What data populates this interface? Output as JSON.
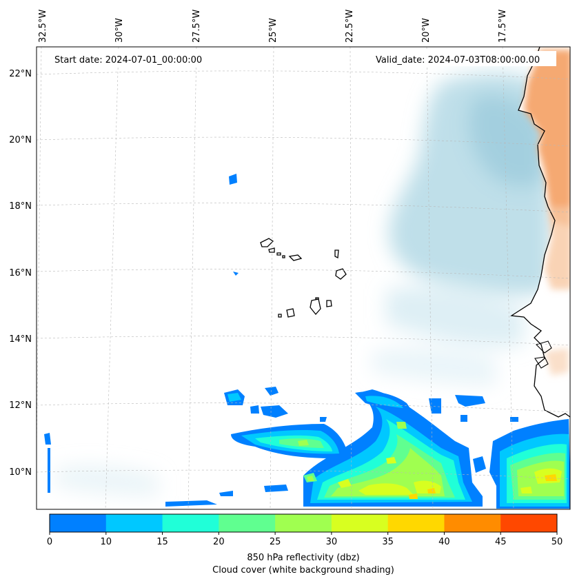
{
  "map": {
    "start_date": "Start date: 2024-07-01_00:00:00",
    "valid_date": "Valid_date: 2024-07-03T08:00:00.00",
    "lon_labels": [
      "32.5°W",
      "30°W",
      "27.5°W",
      "25°W",
      "22.5°W",
      "20°W",
      "17.5°W"
    ],
    "lat_labels": [
      "22°N",
      "20°N",
      "18°N",
      "16°N",
      "14°N",
      "12°N",
      "10°N"
    ],
    "region": "Cape Verde / West African coast",
    "fields": {
      "cloud_cover_color": "#a9d4e2",
      "land_color": "#f4a46a",
      "coastline_color": "#000000"
    }
  },
  "colorbar": {
    "ticks": [
      "0",
      "10",
      "15",
      "20",
      "25",
      "30",
      "35",
      "40",
      "45",
      "50"
    ],
    "colors": [
      "#0080ff",
      "#00c8ff",
      "#20ffd8",
      "#60ff90",
      "#a0ff50",
      "#d8ff20",
      "#ffd800",
      "#ff8c00",
      "#ff4800"
    ],
    "label_line1": "850 hPa reflectivity (dbz)",
    "label_line2": "Cloud cover (white background shading)"
  }
}
